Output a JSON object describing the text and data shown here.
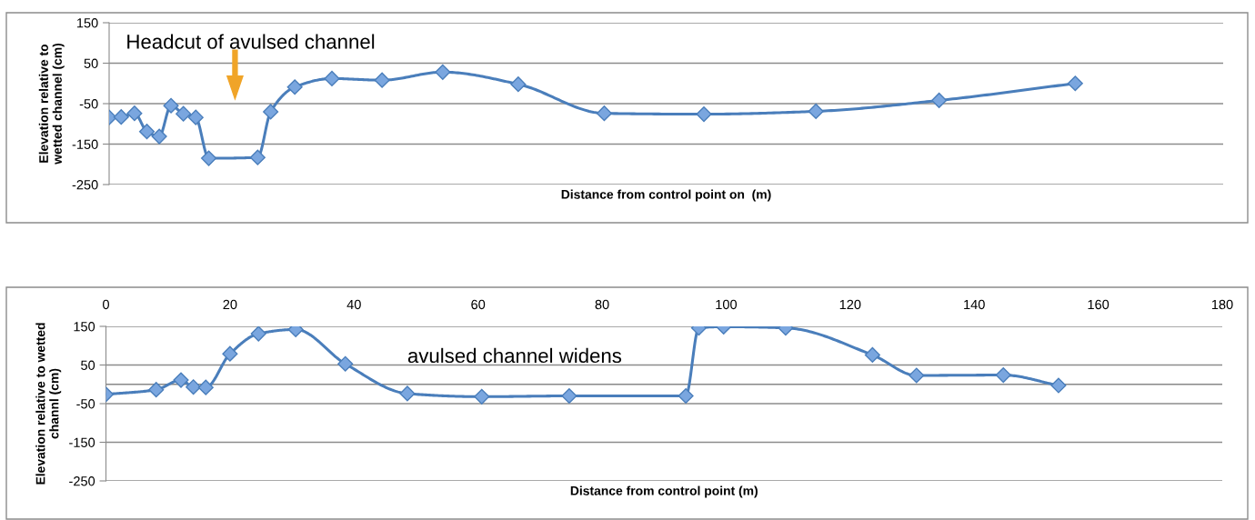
{
  "chart_data": [
    {
      "type": "line",
      "xlabel": "Distance from control point on  (m)",
      "ylabel": "Elevation relative to\nwetted channel (cm)",
      "annotations": [
        "Headcut of avulsed channel"
      ],
      "series": [
        {
          "color": "#4a7ebb",
          "x": [
            0,
            1.95,
            4.1,
            6.1,
            8.1,
            10.0,
            12.0,
            14.0,
            16.1,
            24.0,
            26.1,
            30.0,
            36.0,
            44.1,
            53.9,
            66.1,
            80.0,
            96.1,
            114.2,
            134.1,
            156.1
          ],
          "values": [
            -84,
            -83,
            -74,
            -119,
            -131,
            -55,
            -75,
            -84,
            -185,
            -183,
            -70,
            -9,
            12,
            8,
            28,
            -2,
            -74,
            -76,
            -69,
            -42,
            0
          ]
        }
      ],
      "xlim": [
        0,
        180
      ],
      "ylim": [
        -250,
        150
      ],
      "yticks": [
        -250,
        -150,
        -50,
        50,
        150
      ],
      "tick_labels": "y",
      "grid": "y",
      "marker": "diamond",
      "line_style": "solid"
    },
    {
      "type": "line",
      "xlabel": "Distance from control point (m)",
      "ylabel": "Elevation relative to wetted\nchannl (cm)",
      "annotations": [
        "avulsed channel widens"
      ],
      "series": [
        {
          "color": "#4a7ebb",
          "x": [
            0,
            8.1,
            12.1,
            14.1,
            16.1,
            20.0,
            24.6,
            30.6,
            38.6,
            48.6,
            60.6,
            74.7,
            93.5,
            95.6,
            99.6,
            109.6,
            123.6,
            130.7,
            144.7,
            153.6
          ],
          "values": [
            -26,
            -14,
            11,
            -7,
            -8,
            79,
            131,
            142,
            53,
            -24,
            -32,
            -30,
            -30,
            146,
            149,
            146,
            76,
            23,
            24,
            -3
          ]
        }
      ],
      "xlim": [
        0,
        180
      ],
      "xticks": [
        0,
        20,
        40,
        60,
        80,
        100,
        120,
        140,
        160,
        180
      ],
      "ylim": [
        -250,
        150
      ],
      "yticks": [
        -250,
        -150,
        -50,
        50,
        150
      ],
      "grid": "y",
      "marker": "diamond",
      "line_style": "solid",
      "ref_lines": [
        {
          "axis": "y",
          "value": 0,
          "color": "#888888"
        }
      ]
    }
  ]
}
